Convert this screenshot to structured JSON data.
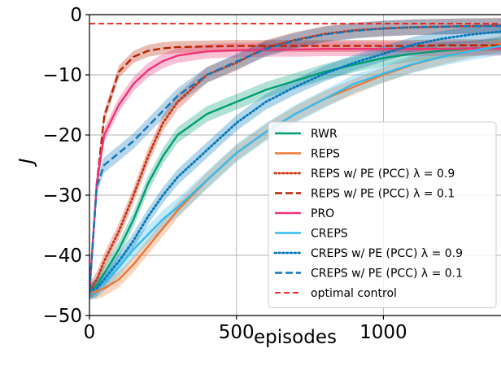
{
  "chart_data": {
    "type": "line",
    "title": "",
    "xlabel": "episodes",
    "ylabel": "J",
    "xlim": [
      0,
      1400
    ],
    "ylim": [
      -50,
      0
    ],
    "x_ticks": [
      0,
      500,
      1000
    ],
    "x_tick_labels": [
      "0",
      "500",
      "1000"
    ],
    "y_ticks": [
      0,
      -10,
      -20,
      -30,
      -40,
      -50
    ],
    "y_tick_labels": [
      "0",
      "−10",
      "−20",
      "−30",
      "−40",
      "−50"
    ],
    "grid": true,
    "legend_position": "lower-right",
    "x": [
      0,
      25,
      50,
      100,
      150,
      200,
      250,
      300,
      400,
      500,
      600,
      700,
      800,
      900,
      1000,
      1100,
      1200,
      1300,
      1400
    ],
    "series": [
      {
        "name": "RWR",
        "color": "#009e73",
        "dash": "solid",
        "band": 1.3,
        "values": [
          -46,
          -45,
          -43,
          -39,
          -34,
          -28,
          -23.5,
          -20,
          -16.5,
          -14.5,
          -12.5,
          -11,
          -9.5,
          -8.3,
          -7.2,
          -6.5,
          -6,
          -5.6,
          -5.2
        ]
      },
      {
        "name": "REPS",
        "color": "#ee7733",
        "dash": "solid",
        "band": 1.3,
        "values": [
          -46,
          -46,
          -45.5,
          -44,
          -41.5,
          -38.5,
          -35.5,
          -32.5,
          -27.5,
          -23,
          -19.5,
          -16.5,
          -14,
          -12,
          -10,
          -8.3,
          -7,
          -5.8,
          -4.8
        ]
      },
      {
        "name": "REPS w/ PE (PCC) λ = 0.9",
        "color": "#cc3311",
        "dash": "dotted",
        "band": 1.3,
        "values": [
          -46,
          -44,
          -41,
          -36,
          -30,
          -23.5,
          -18,
          -14.5,
          -10,
          -8,
          -5.5,
          -4.2,
          -3.2,
          -2.6,
          -2.3,
          -2.1,
          -2.0,
          -1.9,
          -1.8
        ]
      },
      {
        "name": "REPS w/ PE (PCC) λ = 0.1",
        "color": "#bb2200",
        "dash": "dashed",
        "band": 1.0,
        "values": [
          -46,
          -28,
          -17,
          -9.5,
          -7,
          -6,
          -5.6,
          -5.4,
          -5.3,
          -5.2,
          -5.2,
          -5.2,
          -5.2,
          -5.2,
          -5.2,
          -5.2,
          -5.1,
          -5.1,
          -5.1
        ]
      },
      {
        "name": "PRO",
        "color": "#ee3377",
        "dash": "solid",
        "band": 1.2,
        "values": [
          -46,
          -28,
          -20,
          -15,
          -11.5,
          -9.2,
          -7.7,
          -6.8,
          -6.1,
          -5.9,
          -5.8,
          -5.8,
          -5.7,
          -5.7,
          -5.7,
          -5.7,
          -5.7,
          -5.6,
          -5.6
        ]
      },
      {
        "name": "CREPS",
        "color": "#33bbee",
        "dash": "solid",
        "band": 1.5,
        "values": [
          -46,
          -45.5,
          -44.5,
          -42,
          -39,
          -36.5,
          -34,
          -32,
          -27.5,
          -23,
          -19.5,
          -16.5,
          -14,
          -11.5,
          -9.8,
          -8.2,
          -7,
          -6,
          -5.2
        ]
      },
      {
        "name": "CREPS w/ PE (PCC) λ = 0.9",
        "color": "#0077bb",
        "dash": "dotted",
        "band": 1.3,
        "values": [
          -46,
          -45.5,
          -44,
          -41,
          -37.5,
          -33.5,
          -30,
          -27,
          -22.5,
          -18,
          -14.5,
          -12,
          -9.8,
          -8,
          -6.5,
          -5,
          -4,
          -3.3,
          -2.8
        ]
      },
      {
        "name": "CREPS w/ PE (PCC) λ = 0.1",
        "color": "#1177bb",
        "dash": "dashed",
        "band": 1.3,
        "values": [
          -46,
          -28.5,
          -25,
          -23,
          -21,
          -18.5,
          -16,
          -13.5,
          -10,
          -7.8,
          -5.7,
          -4.3,
          -3.3,
          -2.7,
          -2.3,
          -2.1,
          -2.0,
          -1.9,
          -1.9
        ]
      },
      {
        "name": "optimal control",
        "color": "#ee1111",
        "dash": "dashed",
        "band": 0,
        "values": [
          -1.5,
          -1.5,
          -1.5,
          -1.5,
          -1.5,
          -1.5,
          -1.5,
          -1.5,
          -1.5,
          -1.5,
          -1.5,
          -1.5,
          -1.5,
          -1.5,
          -1.5,
          -1.5,
          -1.5,
          -1.5,
          -1.5
        ]
      }
    ]
  }
}
